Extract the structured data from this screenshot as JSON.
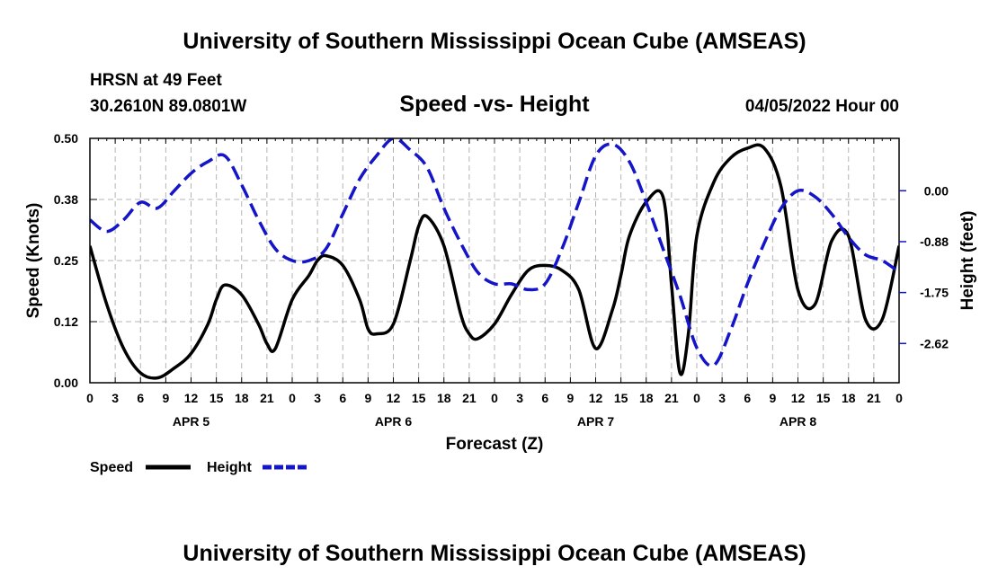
{
  "header": {
    "title": "University of Southern Mississippi Ocean Cube (AMSEAS)",
    "station": "HRSN at 49 Feet",
    "coords": "30.2610N  89.0801W",
    "subtitle": "Speed -vs- Height",
    "datetime": "04/05/2022 Hour 00"
  },
  "footer": {
    "title": "University of Southern Mississippi Ocean Cube (AMSEAS)"
  },
  "legend": {
    "speed_label": "Speed",
    "height_label": "Height"
  },
  "colors": {
    "speed": "#000000",
    "height": "#1414c8",
    "grid": "#b4b4b4"
  },
  "chart_data": {
    "type": "line",
    "title": "Speed -vs- Height",
    "xlabel": "Forecast (Z)",
    "ylabel": "Speed (Knots)",
    "y2label": "Height (feet)",
    "xlim": [
      0,
      96
    ],
    "ylim": [
      0,
      0.5
    ],
    "y2lim": [
      -3.3,
      0.9
    ],
    "grid": true,
    "legend_position": "bottom-left",
    "x_tick_values": [
      0,
      3,
      6,
      9,
      12,
      15,
      18,
      21,
      24,
      27,
      30,
      33,
      36,
      39,
      42,
      45,
      48,
      51,
      54,
      57,
      60,
      63,
      66,
      69,
      72,
      75,
      78,
      81,
      84,
      87,
      90,
      93,
      96
    ],
    "x_tick_labels": [
      "0",
      "3",
      "6",
      "9",
      "12",
      "15",
      "18",
      "21",
      "0",
      "3",
      "6",
      "9",
      "12",
      "15",
      "18",
      "21",
      "0",
      "3",
      "6",
      "9",
      "12",
      "15",
      "18",
      "21",
      "0",
      "3",
      "6",
      "9",
      "12",
      "15",
      "18",
      "21",
      "0"
    ],
    "day_labels": [
      {
        "label": "APR 5",
        "x": 12
      },
      {
        "label": "APR 6",
        "x": 36
      },
      {
        "label": "APR 7",
        "x": 60
      },
      {
        "label": "APR 8",
        "x": 84
      }
    ],
    "y_tick_values": [
      0,
      0.125,
      0.25,
      0.375,
      0.5
    ],
    "y_tick_labels": [
      "0.00",
      "0.12",
      "0.25",
      "0.38",
      "0.50"
    ],
    "y2_tick_values": [
      0,
      -0.875,
      -1.75,
      -2.625
    ],
    "y2_tick_labels": [
      "0.00",
      "-0.88",
      "-1.75",
      "-2.62"
    ],
    "series": [
      {
        "name": "Speed",
        "axis": "left",
        "color": "#000000",
        "dash": "solid",
        "x": [
          0,
          2,
          4,
          6,
          8,
          10,
          12,
          14,
          15,
          16,
          18,
          20,
          21,
          22,
          24,
          26,
          27,
          28,
          30,
          32,
          33,
          34,
          36,
          38,
          39,
          40,
          42,
          44,
          45,
          46,
          48,
          50,
          52,
          54,
          56,
          58,
          60,
          62,
          63,
          64,
          66,
          68,
          69,
          70,
          71,
          72,
          74,
          76,
          78,
          80,
          82,
          84,
          86,
          88,
          90,
          92,
          94,
          96
        ],
        "y": [
          0.28,
          0.16,
          0.07,
          0.02,
          0.01,
          0.03,
          0.06,
          0.12,
          0.17,
          0.2,
          0.18,
          0.12,
          0.08,
          0.07,
          0.17,
          0.22,
          0.25,
          0.26,
          0.24,
          0.17,
          0.11,
          0.1,
          0.12,
          0.25,
          0.32,
          0.34,
          0.28,
          0.14,
          0.1,
          0.09,
          0.12,
          0.18,
          0.23,
          0.24,
          0.23,
          0.19,
          0.07,
          0.15,
          0.22,
          0.3,
          0.37,
          0.38,
          0.2,
          0.02,
          0.1,
          0.3,
          0.41,
          0.46,
          0.48,
          0.48,
          0.4,
          0.19,
          0.16,
          0.29,
          0.3,
          0.13,
          0.13,
          0.28
        ]
      },
      {
        "name": "Height",
        "axis": "right",
        "color": "#1414c8",
        "dash": "dashed",
        "x": [
          0,
          2,
          4,
          6,
          8,
          10,
          12,
          14,
          16,
          18,
          20,
          22,
          24,
          26,
          28,
          30,
          32,
          34,
          36,
          38,
          40,
          42,
          44,
          46,
          48,
          50,
          52,
          54,
          56,
          58,
          60,
          62,
          64,
          66,
          68,
          70,
          72,
          74,
          76,
          78,
          80,
          82,
          84,
          86,
          88,
          90,
          92,
          94,
          96
        ],
        "y": [
          -0.5,
          -0.7,
          -0.5,
          -0.2,
          -0.3,
          0.0,
          0.3,
          0.5,
          0.6,
          0.1,
          -0.5,
          -1.0,
          -1.2,
          -1.2,
          -1.0,
          -0.4,
          0.2,
          0.6,
          0.9,
          0.7,
          0.4,
          -0.3,
          -0.9,
          -1.4,
          -1.6,
          -1.6,
          -1.7,
          -1.6,
          -1.0,
          -0.2,
          0.6,
          0.8,
          0.5,
          -0.2,
          -1.0,
          -1.8,
          -2.7,
          -3.0,
          -2.4,
          -1.6,
          -0.9,
          -0.3,
          0.0,
          -0.1,
          -0.4,
          -0.8,
          -1.1,
          -1.2,
          -1.4
        ]
      }
    ]
  }
}
